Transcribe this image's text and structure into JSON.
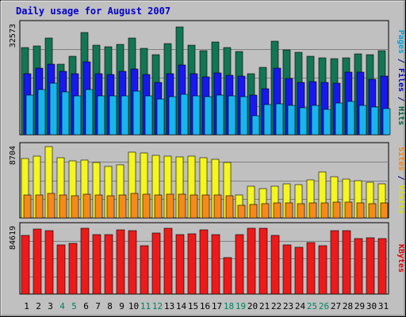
{
  "chart_data": {
    "type": "bar",
    "title": "Daily usage for August 2007",
    "x": [
      "1",
      "2",
      "3",
      "4",
      "5",
      "6",
      "7",
      "8",
      "9",
      "10",
      "11",
      "12",
      "13",
      "14",
      "15",
      "16",
      "17",
      "18",
      "19",
      "20",
      "21",
      "22",
      "23",
      "24",
      "25",
      "26",
      "27",
      "28",
      "29",
      "30",
      "31"
    ],
    "weekend_days": [
      "4",
      "5",
      "11",
      "12",
      "18",
      "19",
      "25",
      "26"
    ],
    "panels": [
      {
        "max_label": "32573",
        "ymax": 32573,
        "side_labels": [
          {
            "text": "Pages",
            "color": "#00a0e0"
          },
          {
            "text": " / ",
            "color": "#000080"
          },
          {
            "text": "Files",
            "color": "#0000cc"
          },
          {
            "text": " / ",
            "color": "#000080"
          },
          {
            "text": "Hits",
            "color": "#006040"
          }
        ],
        "series": [
          {
            "name": "Hits",
            "color": "#127654",
            "values": [
              25500,
              26100,
              28500,
              20800,
              23100,
              30100,
              26200,
              25800,
              26500,
              28400,
              25300,
              23400,
              26800,
              31700,
              26400,
              24600,
              27300,
              25700,
              24500,
              17900,
              19700,
              27500,
              25000,
              24100,
              23100,
              22500,
              22400,
              22600,
              23800,
              23600,
              24700
            ]
          },
          {
            "name": "Files",
            "color": "#1818ee",
            "values": [
              17900,
              19600,
              20700,
              18700,
              17900,
              21300,
              17800,
              17700,
              18600,
              19300,
              17600,
              15400,
              18000,
              20500,
              18000,
              17000,
              18200,
              17500,
              17300,
              11600,
              13500,
              19600,
              16600,
              15300,
              15700,
              15400,
              15100,
              18400,
              18300,
              16400,
              17200
            ]
          },
          {
            "name": "Pages",
            "color": "#18b4ee",
            "values": [
              11600,
              13300,
              15200,
              12600,
              11400,
              13200,
              11400,
              11300,
              11500,
              12700,
              11300,
              10400,
              11200,
              11800,
              11400,
              11200,
              11600,
              11400,
              11200,
              5600,
              8800,
              9000,
              8500,
              8000,
              8600,
              7500,
              9200,
              9700,
              8700,
              8100,
              7600
            ]
          }
        ]
      },
      {
        "max_label": "8704",
        "ymax": 8704,
        "side_labels": [
          {
            "text": "Sites",
            "color": "#ff8000"
          },
          {
            "text": " / ",
            "color": "#000080"
          },
          {
            "text": "Visits",
            "color": "#e0e000"
          }
        ],
        "series": [
          {
            "name": "Visits",
            "color": "#f5f520",
            "values": [
              7200,
              7500,
              8650,
              7300,
              6900,
              7000,
              6700,
              6200,
              6400,
              7900,
              7800,
              7600,
              7500,
              7400,
              7500,
              7300,
              7100,
              6700,
              2800,
              3800,
              3500,
              3800,
              4100,
              4000,
              4600,
              5500,
              5000,
              4700,
              4500,
              4300,
              4100
            ]
          },
          {
            "name": "Sites",
            "color": "#f58a1a",
            "values": [
              2800,
              2800,
              3000,
              2800,
              2700,
              2900,
              2800,
              2700,
              2800,
              3000,
              2900,
              2800,
              2900,
              2900,
              2800,
              2800,
              2800,
              2700,
              1500,
              1600,
              1700,
              1800,
              1800,
              1700,
              1800,
              1800,
              1900,
              1900,
              1800,
              1700,
              1800
            ]
          }
        ]
      },
      {
        "max_label": "84619",
        "ymax": 84619,
        "side_labels": [
          {
            "text": "KBytes",
            "color": "#e00000"
          }
        ],
        "series": [
          {
            "name": "KBytes",
            "color": "#ee1a1a",
            "values": [
              73000,
              80800,
              78700,
              61000,
              62700,
              81300,
              73600,
              73600,
              80000,
              79100,
              59600,
              75600,
              82000,
              73600,
              74900,
              80100,
              73500,
              45400,
              73600,
              81900,
              81900,
              73000,
              61400,
              57800,
              63900,
              59800,
              79100,
              79100,
              69300,
              70200,
              68400
            ]
          }
        ]
      }
    ]
  }
}
